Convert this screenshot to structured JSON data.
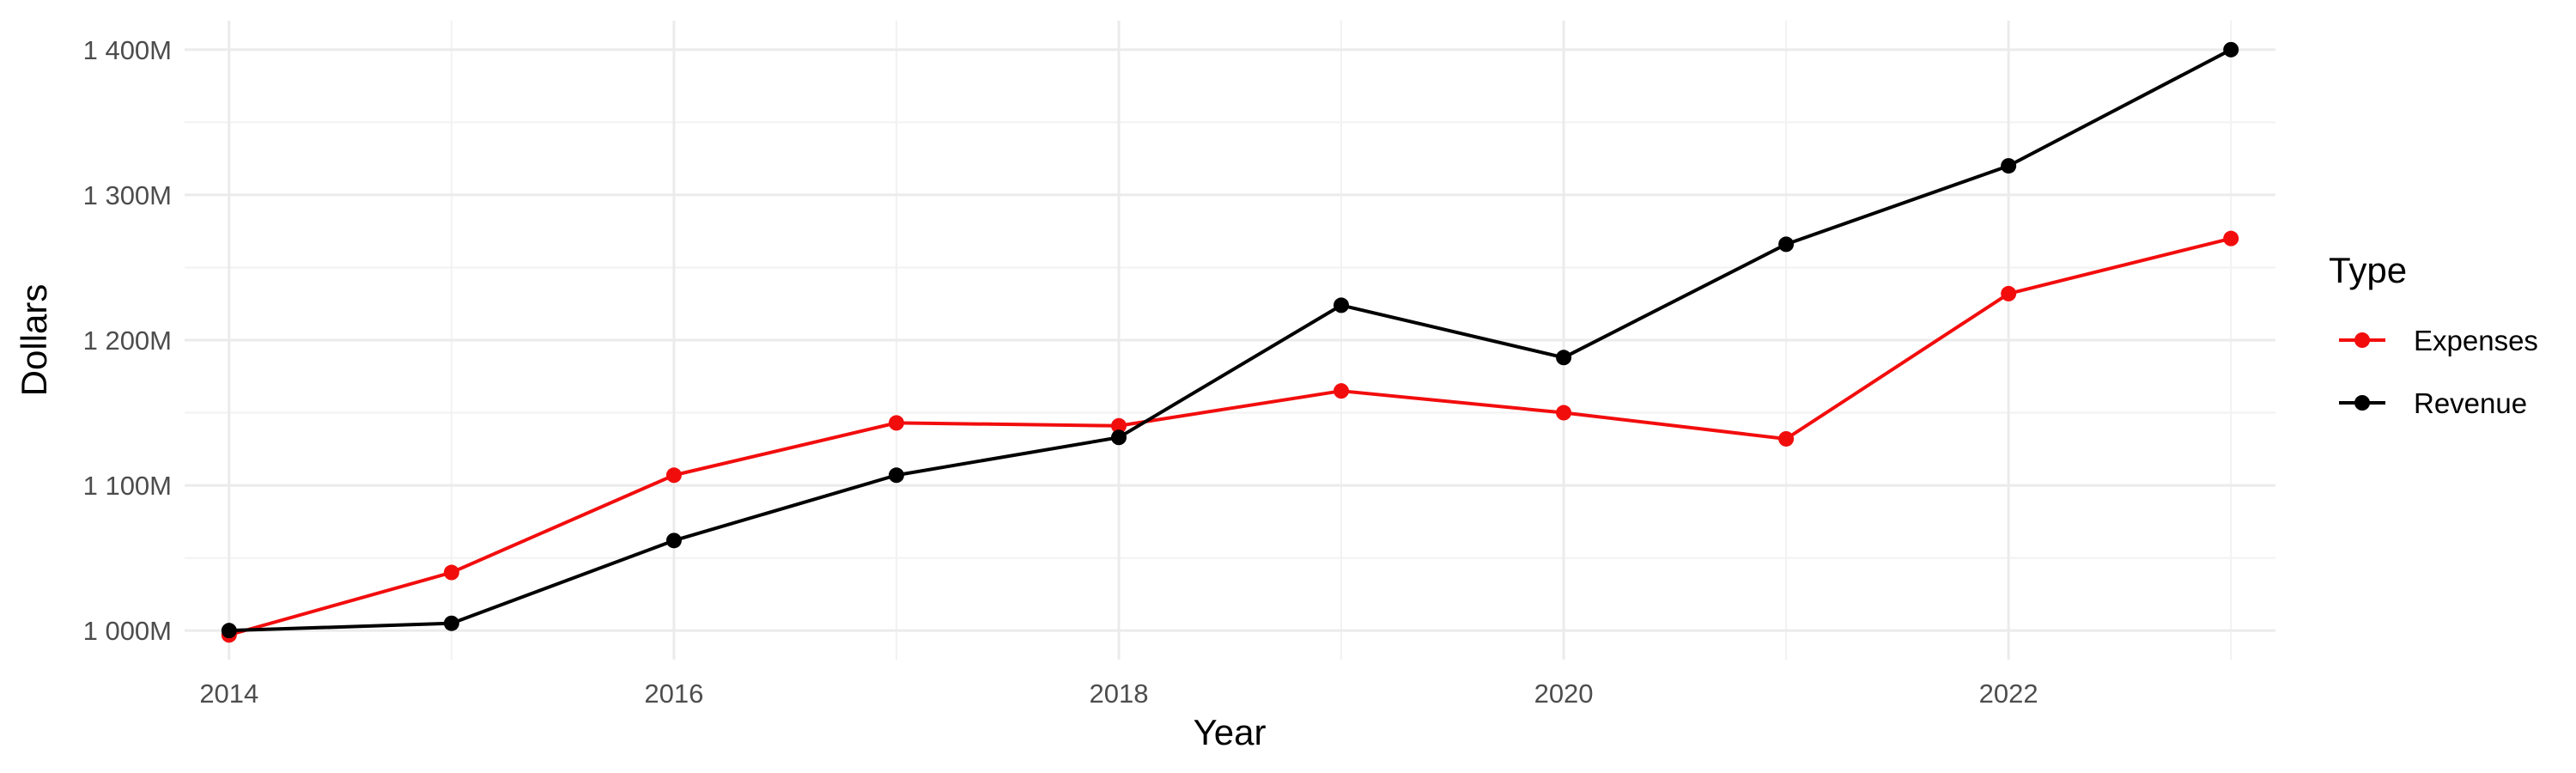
{
  "chart_data": {
    "type": "line",
    "title": "",
    "xlabel": "Year",
    "ylabel": "Dollars",
    "x": [
      2014,
      2015,
      2016,
      2017,
      2018,
      2019,
      2020,
      2021,
      2022,
      2023
    ],
    "xlim": [
      2013.8,
      2023.2
    ],
    "ylim": [
      980,
      1420
    ],
    "x_ticks": [
      2014,
      2016,
      2018,
      2020,
      2022
    ],
    "x_tick_labels": [
      "2014",
      "2016",
      "2018",
      "2020",
      "2022"
    ],
    "y_ticks": [
      1000,
      1100,
      1200,
      1300,
      1400
    ],
    "y_tick_labels": [
      "1 000M",
      "1 100M",
      "1 200M",
      "1 300M",
      "1 400M"
    ],
    "grid": true,
    "legend": {
      "title": "Type",
      "position": "right"
    },
    "series": [
      {
        "name": "Expenses",
        "color": "#f20d0d",
        "values": [
          997,
          1040,
          1107,
          1143,
          1141,
          1165,
          1150,
          1132,
          1232,
          1270
        ]
      },
      {
        "name": "Revenue",
        "color": "#000000",
        "values": [
          1000,
          1005,
          1062,
          1107,
          1133,
          1224,
          1188,
          1266,
          1320,
          1400
        ]
      }
    ]
  }
}
